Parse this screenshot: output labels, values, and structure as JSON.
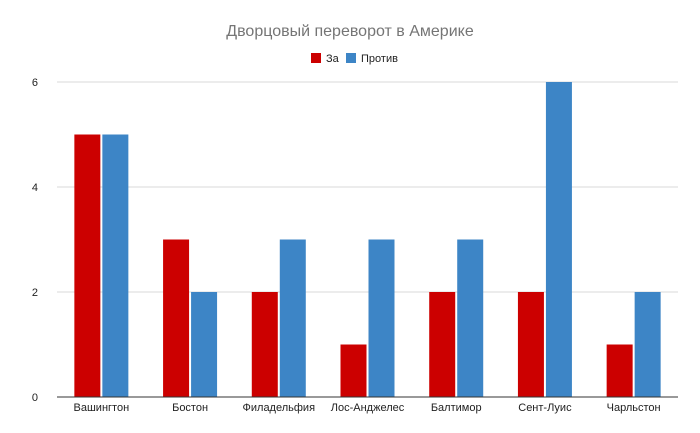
{
  "chart_data": {
    "type": "bar",
    "title": "Дворцовый переворот в Америке",
    "categories": [
      "Вашингтон",
      "Бостон",
      "Филадельфия",
      "Лос-Анджелес",
      "Балтимор",
      "Сент-Луис",
      "Чарльстон"
    ],
    "series": [
      {
        "name": "За",
        "color": "#cc0000",
        "values": [
          5,
          3,
          2,
          1,
          2,
          2,
          1
        ]
      },
      {
        "name": "Против",
        "color": "#3d85c6",
        "values": [
          5,
          2,
          3,
          3,
          3,
          6,
          2
        ]
      }
    ],
    "ylim": [
      0,
      6
    ],
    "yticks": [
      0,
      2,
      4,
      6
    ],
    "grid": true,
    "legend_position": "top-center"
  }
}
